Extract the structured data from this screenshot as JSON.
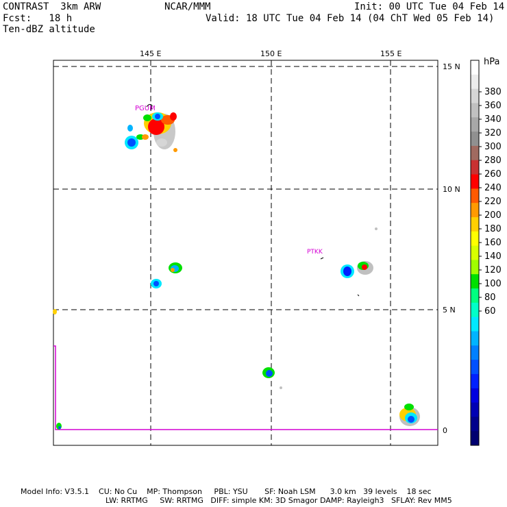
{
  "header": {
    "line1_left": "CONTRAST  3km ARW",
    "line1_center": "NCAR/MMM",
    "line1_right": "Init: 00 UTC Tue 04 Feb 14",
    "line2_left": "Fcst:   18 h",
    "line2_right": "Valid: 18 UTC Tue 04 Feb 14 (04 ChT Wed 05 Feb 14)",
    "line3_left": "Ten-dBZ altitude"
  },
  "map": {
    "lon_labels": [
      "145 E",
      "150 E",
      "155 E"
    ],
    "lat_labels": [
      "15 N",
      "10 N",
      "5 N",
      "0"
    ],
    "stations": [
      {
        "name": "PGUM",
        "color": "#d400d4"
      },
      {
        "name": "PTKK",
        "color": "#d400d4"
      }
    ],
    "boundary_color": "#d400d4"
  },
  "colorbar": {
    "unit": "hPa",
    "levels": [
      "380",
      "360",
      "340",
      "320",
      "300",
      "280",
      "260",
      "240",
      "220",
      "200",
      "180",
      "160",
      "140",
      "120",
      "100",
      "80",
      "60"
    ],
    "colors": [
      "#ffffff",
      "#ececec",
      "#d6d6d6",
      "#c0c0c0",
      "#a8a8a8",
      "#909090",
      "#a06a60",
      "#c83232",
      "#ff0000",
      "#ff5a00",
      "#ff9a00",
      "#ffd000",
      "#ffff00",
      "#d8ff00",
      "#a0ff00",
      "#00e000",
      "#00ff80",
      "#00ffc8",
      "#00e8ff",
      "#00b4ff",
      "#0080ff",
      "#0050ff",
      "#0020ff",
      "#0000e0",
      "#0000b4",
      "#00008c",
      "#000070"
    ]
  },
  "footer": {
    "line1": "Model Info: V3.5.1    CU: No Cu    MP: Thompson     PBL: YSU       SF: Noah LSM      3.0 km   39 levels    18 sec",
    "line2": "LW: RRTMG     SW: RRTMG   DIFF: simple KM: 3D Smagor DAMP: Rayleigh3   SFLAY: Rev MM5"
  }
}
